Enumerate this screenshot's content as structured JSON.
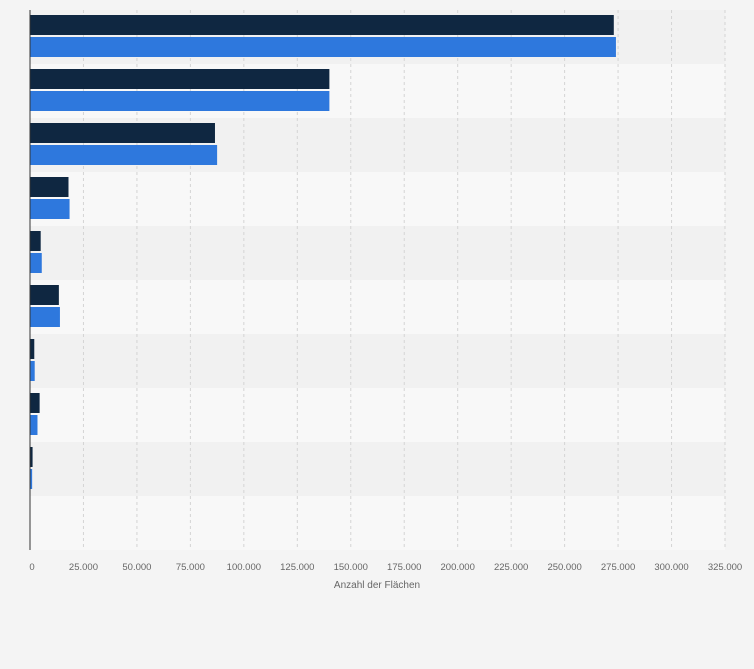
{
  "chart_data": {
    "type": "bar",
    "orientation": "horizontal",
    "categories": [
      "",
      "",
      "",
      "",
      "",
      "",
      "",
      "",
      "",
      ""
    ],
    "series": [
      {
        "color": "#0f2741",
        "values": [
          273000,
          140000,
          86500,
          18000,
          5000,
          13500,
          2000,
          4500,
          1200,
          0
        ]
      },
      {
        "color": "#2e78dd",
        "values": [
          274000,
          140000,
          87500,
          18500,
          5500,
          14000,
          2200,
          3500,
          1000,
          0
        ]
      }
    ],
    "xlabel": "Anzahl der Flächen",
    "ylabel": "",
    "xlim": [
      0,
      325000
    ],
    "xticks": [
      "0",
      "25.000",
      "50.000",
      "75.000",
      "100.000",
      "125.000",
      "150.000",
      "175.000",
      "200.000",
      "225.000",
      "250.000",
      "275.000",
      "300.000",
      "325.000"
    ],
    "grid": true,
    "legend": "none"
  },
  "colors": {
    "background": "#f4f4f4",
    "band_light": "#f8f8f8",
    "band_dark": "#f1f1f1",
    "gridline": "#d4d4d4"
  }
}
